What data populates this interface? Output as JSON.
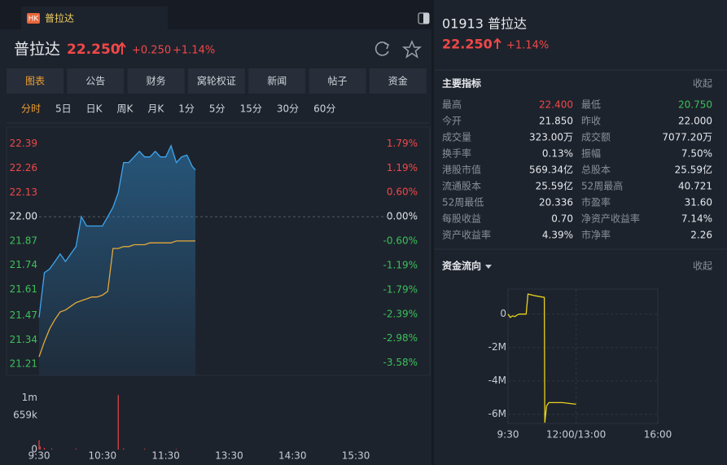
{
  "header": {
    "badge": "HK",
    "tab_title": "普拉达"
  },
  "quote": {
    "name": "普拉达",
    "code": "01913",
    "price": "22.250",
    "change": "+0.250",
    "pct": "+1.14%"
  },
  "tabs": [
    "图表",
    "公告",
    "财务",
    "窝轮权证",
    "新闻",
    "帖子",
    "资金"
  ],
  "periods": [
    "分时",
    "5日",
    "日K",
    "周K",
    "月K",
    "1分",
    "5分",
    "15分",
    "30分",
    "60分"
  ],
  "indicators": {
    "title": "主要指标",
    "toggle": "收起",
    "rows": [
      [
        "最高",
        "22.400",
        "最低",
        "20.750"
      ],
      [
        "今开",
        "21.850",
        "昨收",
        "22.000"
      ],
      [
        "成交量",
        "323.00万",
        "成交额",
        "7077.20万"
      ],
      [
        "换手率",
        "0.13%",
        "振幅",
        "7.50%"
      ],
      [
        "港股市值",
        "569.34亿",
        "总股本",
        "25.59亿"
      ],
      [
        "流通股本",
        "25.59亿",
        "52周最高",
        "40.721"
      ],
      [
        "52周最低",
        "20.336",
        "市盈率",
        "31.60"
      ],
      [
        "每股收益",
        "0.70",
        "净资产收益率",
        "7.14%"
      ],
      [
        "资产收益率",
        "4.39%",
        "市净率",
        "2.26"
      ]
    ]
  },
  "flow_panel": {
    "title": "资金流向",
    "toggle": "收起"
  },
  "chart_data": [
    {
      "type": "line",
      "x": [
        "9:30",
        "9:35",
        "9:40",
        "9:45",
        "9:50",
        "9:55",
        "10:00",
        "10:05",
        "10:10",
        "10:15",
        "10:20",
        "10:25",
        "10:30",
        "10:35",
        "10:40",
        "10:45",
        "10:50",
        "10:55",
        "11:00",
        "11:05",
        "11:10",
        "11:15",
        "11:20",
        "11:25",
        "11:30",
        "11:35",
        "11:40",
        "11:45",
        "11:50",
        "11:55",
        "11:58"
      ],
      "series": [
        {
          "color": "#3ea6f0",
          "values": [
            21.46,
            21.7,
            21.72,
            21.76,
            21.8,
            21.76,
            21.8,
            21.84,
            22.0,
            21.95,
            21.95,
            21.95,
            21.95,
            22.0,
            22.05,
            22.13,
            22.29,
            22.29,
            22.32,
            22.35,
            22.32,
            22.32,
            22.35,
            22.32,
            22.32,
            22.38,
            22.29,
            22.32,
            22.33,
            22.27,
            22.25
          ]
        },
        {
          "color": "#e4a83a",
          "values": [
            21.25,
            21.33,
            21.4,
            21.45,
            21.49,
            21.5,
            21.52,
            21.54,
            21.55,
            21.56,
            21.57,
            21.57,
            21.58,
            21.6,
            21.83,
            21.83,
            21.84,
            21.84,
            21.85,
            21.85,
            21.85,
            21.86,
            21.86,
            21.86,
            21.86,
            21.86,
            21.87,
            21.87,
            21.87,
            21.87,
            21.87
          ]
        }
      ],
      "xlim": [
        "9:30",
        "16:00"
      ],
      "ylim": [
        21.15,
        22.48
      ],
      "yticks": [
        21.21,
        21.34,
        21.47,
        21.61,
        21.74,
        21.87,
        {
          "value": 22,
          "label": "22.00"
        },
        22.13,
        22.26,
        22.39
      ],
      "y2lim": [
        -3.89,
        2.2
      ],
      "y2ticks": [
        {
          "value": -3.58,
          "label": "-3.58%"
        },
        {
          "value": -2.98,
          "label": "-2.98%"
        },
        {
          "value": -2.39,
          "label": "-2.39%"
        },
        {
          "value": -1.79,
          "label": "-1.79%"
        },
        {
          "value": -1.19,
          "label": "-1.19%"
        },
        {
          "value": -0.6,
          "label": "-0.60%"
        },
        {
          "value": 0,
          "label": "0.00%"
        },
        {
          "value": 0.6,
          "label": "0.60%"
        },
        {
          "value": 1.19,
          "label": "1.19%"
        },
        {
          "value": 1.79,
          "label": "1.79%"
        }
      ]
    },
    {
      "type": "bar",
      "x": [
        "9:30",
        "9:31",
        "9:35",
        "9:42",
        "10:05",
        "10:45",
        "10:50",
        "11:10",
        "11:40"
      ],
      "values": [
        180000,
        60000,
        30000,
        20000,
        15000,
        1050000,
        20000,
        15000,
        10000
      ],
      "color": "#e84545",
      "xlim": [
        "9:30",
        "16:00"
      ],
      "xticks": [
        "9:30",
        "10:30",
        "11:30",
        "13:30",
        "14:30",
        "15:30"
      ],
      "ylim": [
        0,
        1100000
      ],
      "yticks": [
        0,
        {
          "value": 659000,
          "label": "659k"
        },
        {
          "value": 1000000,
          "label": "1m"
        }
      ]
    },
    {
      "type": "line",
      "x": [
        "9:30",
        "9:35",
        "9:40",
        "9:45",
        "9:50",
        "9:55",
        "10:00",
        "10:10",
        "10:14",
        "10:30",
        "10:50",
        "10:51",
        "10:55",
        "11:00",
        "11:10",
        "11:30",
        "12:00"
      ],
      "series": [
        {
          "color": "#e8d21d",
          "values": [
            0,
            -200000,
            -100000,
            -150000,
            -50000,
            0,
            0,
            0,
            1200000,
            1100000,
            1000000,
            -6500000,
            -5500000,
            -5300000,
            -5300000,
            -5300000,
            -5400000
          ]
        }
      ],
      "xlim": [
        "9:30",
        "16:00"
      ],
      "xticks": [
        "9:30",
        "12:00/13:00",
        "16:00"
      ],
      "ylim": [
        -6550000,
        1500000
      ],
      "yticks": [
        {
          "value": -6000000,
          "label": "-6M"
        },
        {
          "value": -4000000,
          "label": "-4M"
        },
        {
          "value": -2000000,
          "label": "-2M"
        },
        0
      ],
      "grid": true
    }
  ]
}
